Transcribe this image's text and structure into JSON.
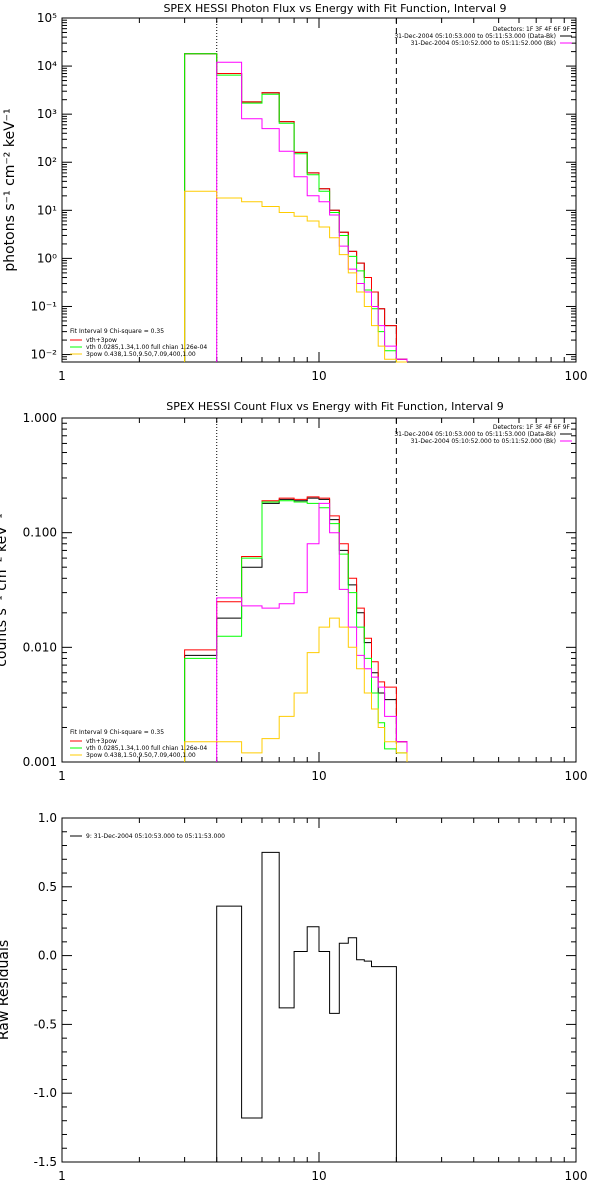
{
  "colors": {
    "black": "#000000",
    "red": "#ff0000",
    "green": "#00ff00",
    "magenta": "#ff00ff",
    "yellow": "#ffcc00"
  },
  "chart_data": [
    {
      "type": "line",
      "title": "SPEX HESSI Photon Flux vs Energy with Fit Function, Interval 9",
      "xlabel": "",
      "ylabel": "photons s⁻¹ cm⁻² keV⁻¹",
      "xscale": "log",
      "yscale": "log",
      "xlim": [
        1,
        100
      ],
      "ylim": [
        0.007,
        100000
      ],
      "xticks": [
        1,
        10,
        100
      ],
      "xtick_labels": [
        "1",
        "10",
        "100"
      ],
      "yticks": [
        0.01,
        0.1,
        1,
        10,
        100,
        1000,
        10000,
        100000
      ],
      "ytick_labels": [
        "10⁻²",
        "10⁻¹",
        "10⁰",
        "10¹",
        "10²",
        "10³",
        "10⁴",
        "10⁵"
      ],
      "vlines": [
        {
          "x": 4.0,
          "style": "dotted"
        },
        {
          "x": 20.0,
          "style": "dashed"
        }
      ],
      "detector_info": {
        "detectors": "Detectors: 1F 3F 4F 6F 9F",
        "lines": [
          {
            "text": "31-Dec-2004 05:10:53.000 to 05:11:53.000 (Data-Bk)",
            "color": "black"
          },
          {
            "text": "31-Dec-2004 05:10:52.000 to 05:11:52.000 (Bk)",
            "color": "magenta"
          }
        ]
      },
      "fit_info": {
        "header": "Fit Interval 9   Chi-square = 0.35",
        "entries": [
          {
            "text": "vth+3pow",
            "color": "red"
          },
          {
            "text": "vth 0.0285,1.34,1.00  full chian 1.26e-04",
            "color": "green"
          },
          {
            "text": "3pow 0.438,1.50,9.50,7.09,400,1.00",
            "color": "yellow"
          }
        ]
      },
      "bin_edges": [
        3,
        4,
        5,
        6,
        7,
        8,
        9,
        10,
        11,
        12,
        13,
        14,
        15,
        16,
        17,
        18,
        20,
        22
      ],
      "series": [
        {
          "color": "black",
          "values": [
            18000,
            7000,
            1800,
            2800,
            700,
            160,
            60,
            28,
            10,
            3.5,
            1.4,
            0.8,
            0.4,
            0.2,
            0.09,
            0.04,
            0.008
          ]
        },
        {
          "color": "red",
          "values": [
            18000,
            7000,
            1800,
            2800,
            700,
            160,
            60,
            28,
            10,
            3.5,
            1.4,
            0.8,
            0.4,
            0.2,
            0.09,
            0.04,
            0.008
          ]
        },
        {
          "color": "green",
          "values": [
            18000,
            6500,
            1700,
            2600,
            650,
            150,
            55,
            25,
            9,
            3.0,
            1.1,
            0.55,
            0.22,
            0.09,
            0.03,
            0.012,
            0.007
          ]
        },
        {
          "color": "magenta",
          "values": [
            null,
            12000,
            800,
            500,
            170,
            50,
            20,
            15,
            8,
            1.8,
            0.6,
            0.3,
            0.2,
            0.1,
            0.04,
            0.015,
            0.008
          ]
        },
        {
          "color": "yellow",
          "values": [
            25,
            18,
            15,
            12,
            9,
            7.5,
            6,
            4.5,
            2.7,
            1.2,
            0.5,
            0.2,
            0.1,
            0.04,
            0.015,
            0.008,
            0.007
          ]
        }
      ]
    },
    {
      "type": "line",
      "title": "SPEX HESSI Count Flux vs Energy with Fit Function, Interval 9",
      "xlabel": "",
      "ylabel": "counts s⁻¹ cm⁻² keV⁻¹",
      "xscale": "log",
      "yscale": "log",
      "xlim": [
        1,
        100
      ],
      "ylim": [
        0.001,
        1.0
      ],
      "xticks": [
        1,
        10,
        100
      ],
      "xtick_labels": [
        "1",
        "10",
        "100"
      ],
      "yticks": [
        0.001,
        0.01,
        0.1,
        1.0
      ],
      "ytick_labels": [
        "0.001",
        "0.010",
        "0.100",
        "1.000"
      ],
      "vlines": [
        {
          "x": 4.0,
          "style": "dotted"
        },
        {
          "x": 20.0,
          "style": "dashed"
        }
      ],
      "detector_info": {
        "detectors": "Detectors: 1F 3F 4F 6F 9F",
        "lines": [
          {
            "text": "31-Dec-2004 05:10:53.000 to 05:11:53.000 (Data-Bk)",
            "color": "black"
          },
          {
            "text": "31-Dec-2004 05:10:52.000 to 05:11:52.000 (Bk)",
            "color": "magenta"
          }
        ]
      },
      "fit_info": {
        "header": "Fit Interval 9   Chi-square = 0.35",
        "entries": [
          {
            "text": "vth+3pow",
            "color": "red"
          },
          {
            "text": "vth 0.0285,1.34,1.00  full chian 1.26e-04",
            "color": "green"
          },
          {
            "text": "3pow 0.438,1.50,9.50,7.09,400,1.00",
            "color": "yellow"
          }
        ]
      },
      "bin_edges": [
        3,
        4,
        5,
        6,
        7,
        8,
        9,
        10,
        11,
        12,
        13,
        14,
        15,
        16,
        17,
        18,
        20,
        22
      ],
      "series": [
        {
          "color": "black",
          "values": [
            0.0085,
            0.018,
            0.05,
            0.18,
            0.195,
            0.19,
            0.2,
            0.195,
            0.13,
            0.07,
            0.035,
            0.02,
            0.011,
            0.006,
            0.004,
            0.0035,
            0.0015
          ]
        },
        {
          "color": "red",
          "values": [
            0.0095,
            0.025,
            0.062,
            0.19,
            0.2,
            0.195,
            0.205,
            0.2,
            0.14,
            0.08,
            0.04,
            0.022,
            0.012,
            0.0075,
            0.005,
            0.0045,
            0.0015
          ]
        },
        {
          "color": "green",
          "values": [
            0.008,
            0.0125,
            0.06,
            0.185,
            0.19,
            0.185,
            0.18,
            0.165,
            0.12,
            0.065,
            0.03,
            0.015,
            0.008,
            0.004,
            0.0022,
            0.0013,
            0.0012
          ]
        },
        {
          "color": "magenta",
          "values": [
            null,
            0.027,
            0.023,
            0.022,
            0.024,
            0.03,
            0.08,
            0.18,
            0.1,
            0.032,
            0.015,
            0.0085,
            0.0065,
            0.0055,
            0.0045,
            0.0025,
            0.0015
          ]
        },
        {
          "color": "yellow",
          "values": [
            0.0015,
            0.0015,
            0.0012,
            0.0016,
            0.0025,
            0.004,
            0.009,
            0.015,
            0.018,
            0.015,
            0.01,
            0.0065,
            0.004,
            0.0029,
            0.002,
            0.0015,
            0.0012
          ]
        }
      ]
    },
    {
      "type": "line",
      "title": "",
      "xlabel": "",
      "ylabel": "Raw Residuals",
      "xscale": "log",
      "yscale": "linear",
      "xlim": [
        1,
        100
      ],
      "ylim": [
        -1.5,
        1.0
      ],
      "xticks": [
        1,
        10,
        100
      ],
      "xtick_labels": [
        "1",
        "10",
        "100"
      ],
      "yticks": [
        -1.5,
        -1.0,
        -0.5,
        0.0,
        0.5,
        1.0
      ],
      "ytick_labels": [
        "-1.5",
        "-1.0",
        "-0.5",
        "0.0",
        "0.5",
        "1.0"
      ],
      "legend": "9: 31-Dec-2004 05:10:53.000 to 05:11:53.000",
      "bin_edges": [
        4,
        5,
        6,
        7,
        8,
        9,
        10,
        11,
        12,
        13,
        14,
        15,
        16,
        17,
        18,
        20
      ],
      "series": [
        {
          "color": "black",
          "values": [
            0.36,
            -1.18,
            0.75,
            -0.38,
            0.03,
            0.21,
            0.03,
            -0.42,
            0.09,
            0.13,
            -0.03,
            -0.04,
            -0.08,
            -0.08,
            -0.08
          ]
        }
      ]
    }
  ]
}
